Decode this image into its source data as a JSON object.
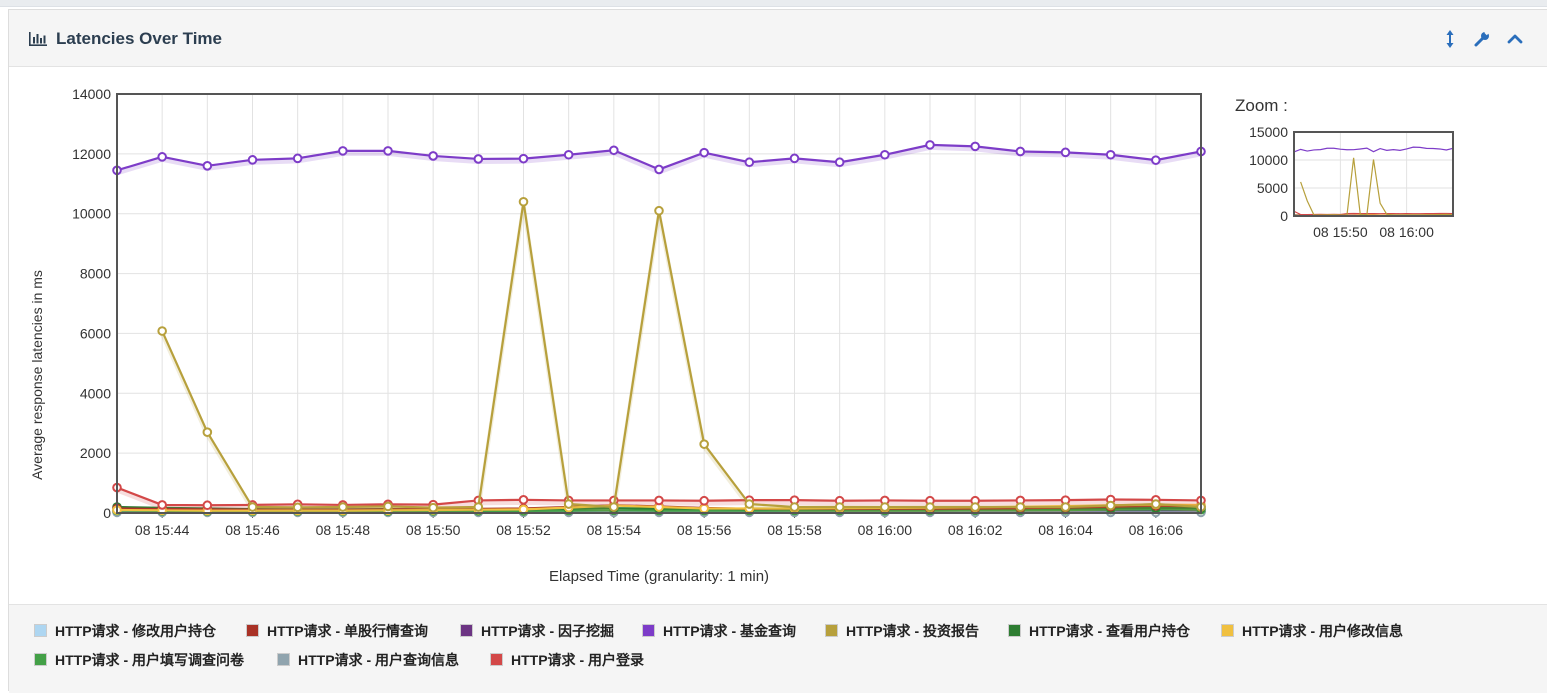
{
  "panel": {
    "title": "Latencies Over Time",
    "icons": {
      "title": "bar-chart-icon",
      "resize": "vertical-resize-icon",
      "settings": "wrench-icon",
      "collapse": "chevron-up-icon"
    }
  },
  "zoom": {
    "label": "Zoom :"
  },
  "chart_data": {
    "type": "line",
    "title": "",
    "xlabel": "Elapsed Time (granularity: 1 min)",
    "ylabel": "Average response latencies in ms",
    "ylim": [
      0,
      14000
    ],
    "yticks": [
      "0",
      "2000",
      "4000",
      "6000",
      "8000",
      "10000",
      "12000",
      "14000"
    ],
    "x": [
      "08 15:43",
      "08 15:44",
      "08 15:45",
      "08 15:46",
      "08 15:47",
      "08 15:48",
      "08 15:49",
      "08 15:50",
      "08 15:51",
      "08 15:52",
      "08 15:53",
      "08 15:54",
      "08 15:55",
      "08 15:56",
      "08 15:57",
      "08 15:58",
      "08 15:59",
      "08 16:00",
      "08 16:01",
      "08 16:02",
      "08 16:03",
      "08 16:04",
      "08 16:05",
      "08 16:06",
      "08 16:07"
    ],
    "xtick_labels": [
      "08 15:44",
      "08 15:46",
      "08 15:48",
      "08 15:50",
      "08 15:52",
      "08 15:54",
      "08 15:56",
      "08 15:58",
      "08 16:00",
      "08 16:02",
      "08 16:04",
      "08 16:06"
    ],
    "grid": true,
    "legend_position": "bottom",
    "series": [
      {
        "name": "HTTP请求 - 修改用户持仓",
        "color": "#aed6f1",
        "values": [
          40,
          30,
          30,
          30,
          30,
          30,
          30,
          30,
          30,
          30,
          30,
          30,
          30,
          30,
          30,
          30,
          30,
          30,
          30,
          30,
          30,
          30,
          30,
          30,
          30
        ]
      },
      {
        "name": "HTTP请求 - 单股行情查询",
        "color": "#a93226",
        "values": [
          150,
          130,
          120,
          110,
          110,
          110,
          120,
          130,
          140,
          150,
          200,
          260,
          220,
          170,
          140,
          150,
          140,
          140,
          140,
          150,
          160,
          180,
          210,
          240,
          220
        ]
      },
      {
        "name": "HTTP请求 - 因子挖掘",
        "color": "#6c3483",
        "values": [
          60,
          50,
          50,
          50,
          50,
          50,
          50,
          50,
          50,
          50,
          50,
          50,
          50,
          50,
          50,
          50,
          50,
          50,
          50,
          50,
          50,
          50,
          50,
          50,
          50
        ]
      },
      {
        "name": "HTTP请求 - 基金查询",
        "color": "#7d3cc8",
        "values": [
          11450,
          11900,
          11600,
          11800,
          11850,
          12100,
          12100,
          11930,
          11830,
          11840,
          11970,
          12120,
          11480,
          12040,
          11720,
          11850,
          11720,
          11970,
          12300,
          12250,
          12080,
          12050,
          11970,
          11790,
          12080
        ]
      },
      {
        "name": "HTTP请求 - 投资报告",
        "color": "#b7a03c",
        "values": [
          null,
          6080,
          2700,
          200,
          190,
          200,
          220,
          180,
          200,
          10400,
          300,
          200,
          10100,
          2300,
          300,
          200,
          200,
          200,
          200,
          200,
          200,
          200,
          250,
          300,
          200
        ]
      },
      {
        "name": "HTTP请求 - 查看用户持仓",
        "color": "#2e7d32",
        "values": [
          200,
          170,
          150,
          130,
          120,
          120,
          130,
          120,
          110,
          120,
          150,
          160,
          150,
          140,
          130,
          130,
          130,
          130,
          130,
          140,
          150,
          150,
          160,
          170,
          160
        ]
      },
      {
        "name": "HTTP请求 - 用户修改信息",
        "color": "#f0c040",
        "values": [
          100,
          90,
          80,
          80,
          80,
          80,
          90,
          100,
          110,
          120,
          180,
          250,
          200,
          150,
          150,
          150,
          160,
          170,
          180,
          190,
          210,
          230,
          260,
          280,
          270
        ]
      },
      {
        "name": "HTTP请求 - 用户填写调查问卷",
        "color": "#43a047",
        "values": [
          80,
          70,
          60,
          60,
          60,
          60,
          60,
          70,
          70,
          70,
          80,
          90,
          80,
          80,
          80,
          80,
          80,
          80,
          80,
          90,
          90,
          100,
          110,
          120,
          110
        ]
      },
      {
        "name": "HTTP请求 - 用户查询信息",
        "color": "#90a4ae",
        "values": [
          20,
          20,
          20,
          20,
          20,
          20,
          20,
          20,
          20,
          20,
          20,
          20,
          20,
          20,
          20,
          20,
          20,
          20,
          20,
          20,
          20,
          20,
          20,
          20,
          20
        ]
      },
      {
        "name": "HTTP请求 - 用户登录",
        "color": "#d34848",
        "values": [
          850,
          270,
          260,
          270,
          290,
          270,
          290,
          280,
          420,
          440,
          420,
          420,
          420,
          410,
          430,
          430,
          410,
          420,
          410,
          410,
          420,
          430,
          450,
          440,
          420
        ]
      }
    ]
  },
  "zoom_chart": {
    "yticks": [
      "0",
      "5000",
      "10000",
      "15000"
    ],
    "xticks": [
      "08 15:50",
      "08 16:00"
    ]
  }
}
